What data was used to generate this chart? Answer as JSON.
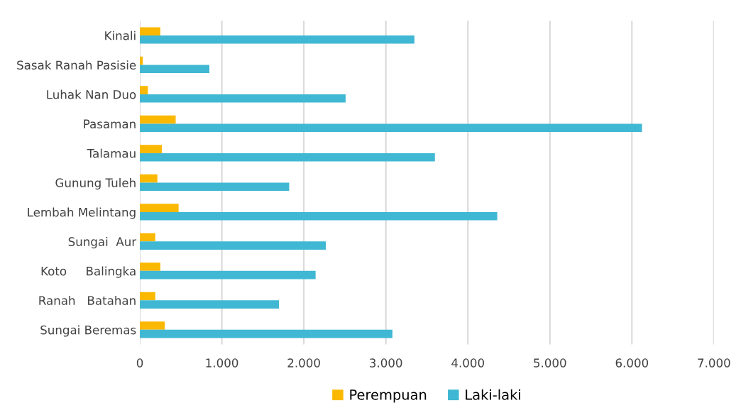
{
  "chart_data": {
    "type": "bar",
    "orientation": "horizontal",
    "categories": [
      "Kinali",
      "Sasak Ranah Pasisie",
      "Luhak Nan Duo",
      "Pasaman",
      "Talamau",
      "Gunung Tuleh",
      "Lembah Melintang",
      "Sungai  Aur",
      "Koto     Balingka",
      "Ranah   Batahan",
      "Sungai Beremas"
    ],
    "series": [
      {
        "name": "Perempuan",
        "color": "#fbb800",
        "values": [
          250,
          36,
          98,
          437,
          268,
          214,
          473,
          188,
          250,
          188,
          304
        ]
      },
      {
        "name": "Laki-laki",
        "color": "#40b8d3",
        "values": [
          3348,
          848,
          2509,
          6123,
          3598,
          1821,
          4358,
          2268,
          2143,
          1696,
          3080
        ]
      }
    ],
    "xlim": [
      0,
      7000
    ],
    "xticks": [
      0,
      {
        "value": 1000,
        "label": "1.000"
      },
      {
        "value": 2000,
        "label": "2.000"
      },
      {
        "value": 3000,
        "label": "3.000"
      },
      {
        "value": 4000,
        "label": "4.000"
      },
      {
        "value": 5000,
        "label": "5.000"
      },
      {
        "value": 6000,
        "label": "6.000"
      },
      {
        "value": 7000,
        "label": "7.000"
      }
    ],
    "grid": "x",
    "legend": "bottom"
  }
}
